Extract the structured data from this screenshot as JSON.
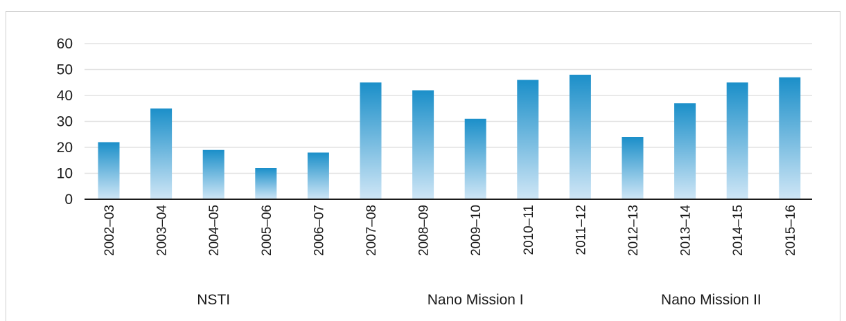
{
  "chart_data": {
    "type": "bar",
    "title": "",
    "xlabel": "",
    "ylabel": "",
    "ylim": [
      0,
      60
    ],
    "yticks": [
      0,
      10,
      20,
      30,
      40,
      50,
      60
    ],
    "grid": true,
    "categories": [
      "2002–03",
      "2003–04",
      "2004–05",
      "2005–06",
      "2006–07",
      "2007–08",
      "2008–09",
      "2009–10",
      "2010–11",
      "2011–12",
      "2012–13",
      "2013–14",
      "2014–15",
      "2015–16"
    ],
    "values": [
      22,
      35,
      19,
      12,
      18,
      45,
      42,
      31,
      46,
      48,
      24,
      37,
      45,
      47
    ],
    "groups": [
      {
        "label": "NSTI",
        "categories": [
          "2002–03",
          "2003–04",
          "2004–05",
          "2005–06",
          "2006–07"
        ]
      },
      {
        "label": "Nano Mission I",
        "categories": [
          "2007–08",
          "2008–09",
          "2009–10",
          "2010–11",
          "2011–12"
        ]
      },
      {
        "label": "Nano Mission II",
        "categories": [
          "2012–13",
          "2013–14",
          "2014–15",
          "2015–16"
        ]
      }
    ],
    "colors": {
      "bar_top": "#1b8fc9",
      "bar_bottom": "#cfe6f6",
      "grid": "#e2e2e2",
      "axis": "#1a1a1a"
    }
  }
}
